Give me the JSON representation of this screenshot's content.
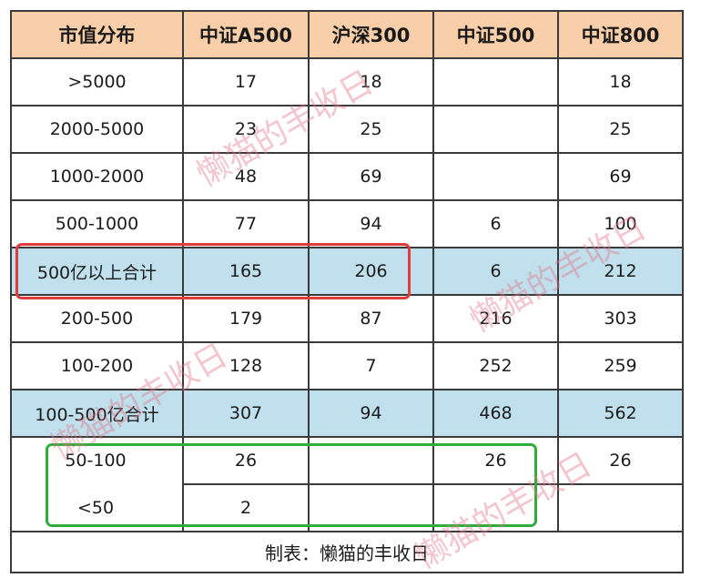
{
  "table": {
    "headers": [
      "市值分布",
      "中证A500",
      "沪深300",
      "中证500",
      "中证800"
    ],
    "rows": [
      {
        "label": ">5000",
        "cells": [
          "17",
          "18",
          "",
          "18"
        ]
      },
      {
        "label": "2000-5000",
        "cells": [
          "23",
          "25",
          "",
          "25"
        ]
      },
      {
        "label": "1000-2000",
        "cells": [
          "48",
          "69",
          "",
          "69"
        ]
      },
      {
        "label": "500-1000",
        "cells": [
          "77",
          "94",
          "6",
          "100"
        ]
      },
      {
        "label": "500亿以上合计",
        "cells": [
          "165",
          "206",
          "6",
          "212"
        ]
      },
      {
        "label": "200-500",
        "cells": [
          "179",
          "87",
          "216",
          "303"
        ]
      },
      {
        "label": "100-200",
        "cells": [
          "128",
          "7",
          "252",
          "259"
        ]
      },
      {
        "label": "100-500亿合计",
        "cells": [
          "307",
          "94",
          "468",
          "562"
        ]
      },
      {
        "label": "50-100",
        "cells": [
          "26",
          "",
          "26",
          "26"
        ]
      },
      {
        "label": "<50",
        "cells": [
          "2",
          "",
          "",
          ""
        ]
      }
    ],
    "caption": "制表：懒猫的丰收日"
  },
  "watermark": "懒猫的丰收日",
  "colors": {
    "header_bg": "#f8cfa8",
    "highlight_row_bg": "#bfe0ec",
    "red_box": "#e23b3b",
    "green_box": "#2fad3a",
    "watermark": "#e27887"
  }
}
